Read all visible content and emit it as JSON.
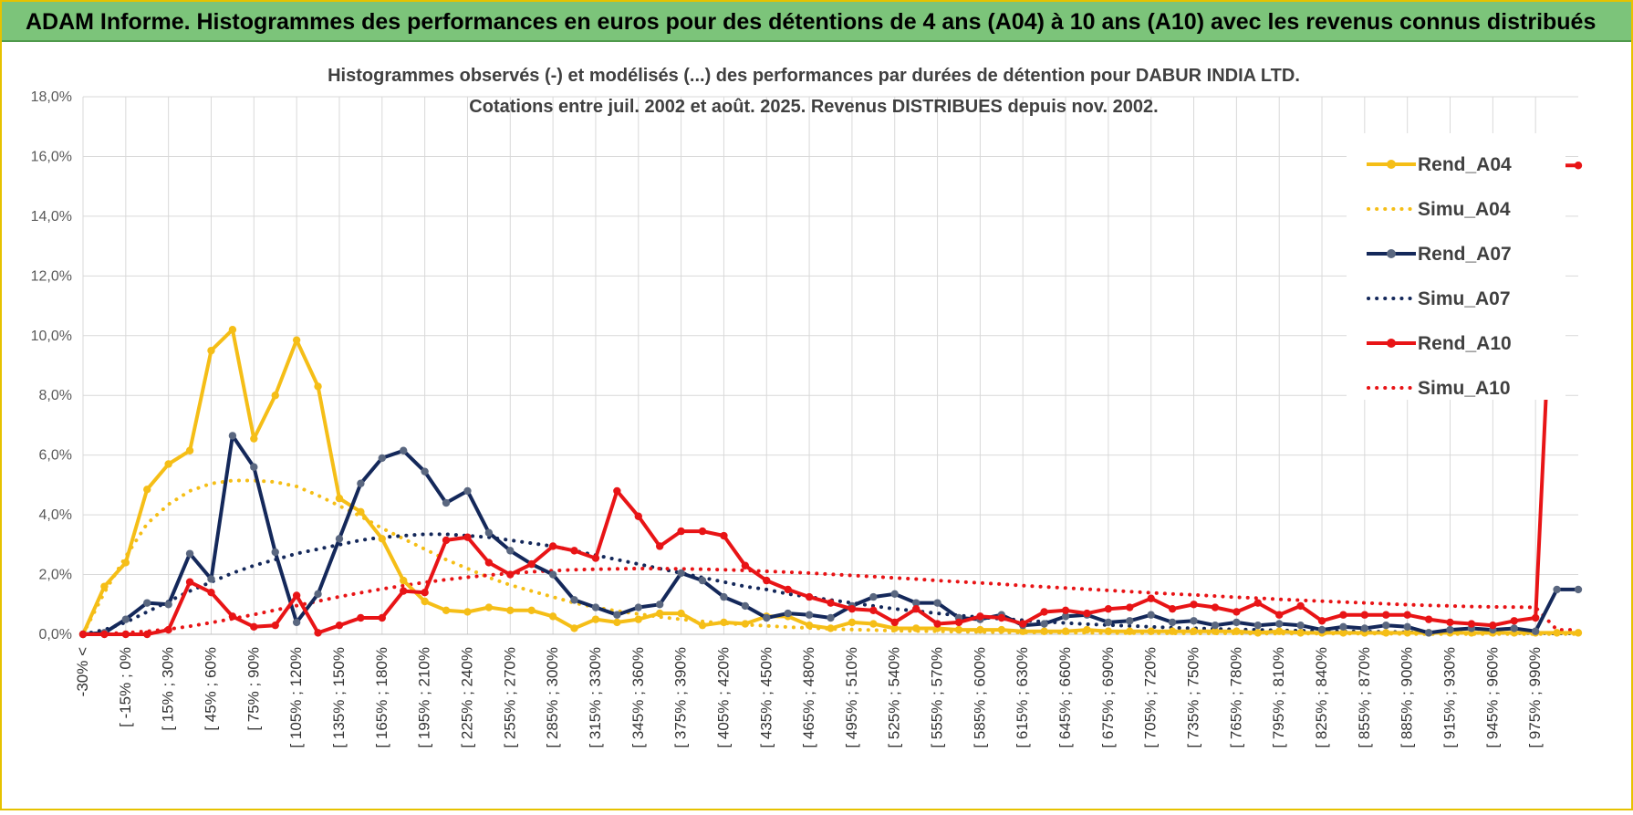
{
  "banner": {
    "title": "ADAM Informe. Histogrammes des performances en euros pour des détentions de 4 ans (A04) à 10 ans (A10) avec les revenus connus distribués"
  },
  "chart_data": {
    "type": "line",
    "title": "Histogrammes observés (-) et modélisés (...) des performances par durées de détention pour DABUR INDIA LTD.",
    "subtitle": "Cotations entre juil. 2002 et août. 2025. Revenus DISTRIBUES depuis nov. 2002.",
    "xlabel": "",
    "ylabel": "",
    "ylim": [
      0,
      18
    ],
    "y_ticks": [
      "0,0%",
      "2,0%",
      "4,0%",
      "6,0%",
      "8,0%",
      "10,0%",
      "12,0%",
      "14,0%",
      "16,0%",
      "18,0%"
    ],
    "x_tick_labels": [
      "-30% <",
      "[ -15% ; 0%",
      "[ 15% ; 30%",
      "[ 45% ; 60%",
      "[ 75% ; 90%",
      "[ 105% ; 120%",
      "[ 135% ; 150%",
      "[ 165% ; 180%",
      "[ 195% ; 210%",
      "[ 225% ; 240%",
      "[ 255% ; 270%",
      "[ 285% ; 300%",
      "[ 315% ; 330%",
      "[ 345% ; 360%",
      "[ 375% ; 390%",
      "[ 405% ; 420%",
      "[ 435% ; 450%",
      "[ 465% ; 480%",
      "[ 495% ; 510%",
      "[ 525% ; 540%",
      "[ 555% ; 570%",
      "[ 585% ; 600%",
      "[ 615% ; 630%",
      "[ 645% ; 660%",
      "[ 675% ; 690%",
      "[ 705% ; 720%",
      "[ 735% ; 750%",
      "[ 765% ; 780%",
      "[ 795% ; 810%",
      "[ 825% ; 840%",
      "[ 855% ; 870%",
      "[ 885% ; 900%",
      "[ 915% ; 930%",
      "[ 945% ; 960%",
      "[ 975% ; 990%"
    ],
    "grid": true,
    "legend_position": "top-right",
    "series": [
      {
        "name": "Rend_A04",
        "style": "solid-marker",
        "color": "#f5be17",
        "values": [
          0,
          1.6,
          2.4,
          4.85,
          5.7,
          6.15,
          9.5,
          10.2,
          6.55,
          8.0,
          9.85,
          8.3,
          4.55,
          4.1,
          3.2,
          1.8,
          1.1,
          0.8,
          0.75,
          0.9,
          0.8,
          0.8,
          0.6,
          0.2,
          0.5,
          0.4,
          0.5,
          0.7,
          0.7,
          0.3,
          0.4,
          0.35,
          0.6,
          0.6,
          0.3,
          0.2,
          0.4,
          0.35,
          0.2,
          0.2,
          0.2,
          0.15,
          0.15,
          0.15,
          0.1,
          0.1,
          0.1,
          0.15,
          0.1,
          0.1,
          0.1,
          0.1,
          0.1,
          0.1,
          0.1,
          0.05,
          0.1,
          0.05,
          0.05,
          0.05,
          0.05,
          0.05,
          0.05,
          0.05,
          0.05,
          0.05,
          0.05,
          0.05,
          0.05,
          0.05,
          0.05
        ]
      },
      {
        "name": "Simu_A04",
        "style": "dotted",
        "color": "#f5be17",
        "values": [
          0,
          1.4,
          2.6,
          3.7,
          4.35,
          4.8,
          5.05,
          5.15,
          5.15,
          5.1,
          4.95,
          4.65,
          4.3,
          3.95,
          3.55,
          3.2,
          2.85,
          2.5,
          2.2,
          1.9,
          1.65,
          1.45,
          1.25,
          1.05,
          0.9,
          0.78,
          0.68,
          0.58,
          0.5,
          0.43,
          0.37,
          0.32,
          0.28,
          0.24,
          0.21,
          0.18,
          0.16,
          0.14,
          0.12,
          0.11,
          0.1,
          0.09,
          0.08,
          0.07,
          0.06,
          0.06,
          0.05,
          0.05,
          0.04,
          0.04,
          0.04,
          0.03,
          0.03,
          0.03,
          0.03,
          0.02,
          0.02,
          0.02,
          0.02,
          0.02,
          0.02,
          0.02,
          0.01,
          0.01,
          0.01,
          0.01,
          0.01,
          0.01,
          0.01,
          0.01,
          0.01
        ]
      },
      {
        "name": "Rend_A07",
        "style": "solid-marker",
        "color": "#14285a",
        "values": [
          0,
          0.05,
          0.5,
          1.05,
          1.0,
          2.7,
          1.85,
          6.65,
          5.6,
          2.75,
          0.4,
          1.35,
          3.2,
          5.05,
          5.9,
          6.15,
          5.45,
          4.4,
          4.8,
          3.4,
          2.8,
          2.35,
          2.0,
          1.15,
          0.9,
          0.65,
          0.9,
          1.0,
          2.05,
          1.8,
          1.25,
          0.95,
          0.55,
          0.7,
          0.65,
          0.55,
          0.95,
          1.25,
          1.35,
          1.05,
          1.05,
          0.55,
          0.5,
          0.65,
          0.3,
          0.35,
          0.6,
          0.65,
          0.4,
          0.45,
          0.65,
          0.4,
          0.45,
          0.3,
          0.4,
          0.3,
          0.35,
          0.3,
          0.15,
          0.25,
          0.2,
          0.3,
          0.25,
          0.05,
          0.15,
          0.2,
          0.15,
          0.2,
          0.1,
          1.5,
          1.5
        ]
      },
      {
        "name": "Simu_A07",
        "style": "dotted",
        "color": "#14285a",
        "values": [
          0,
          0.15,
          0.4,
          0.75,
          1.1,
          1.45,
          1.75,
          2.05,
          2.3,
          2.5,
          2.7,
          2.85,
          3.0,
          3.15,
          3.25,
          3.3,
          3.35,
          3.35,
          3.3,
          3.25,
          3.15,
          3.05,
          2.95,
          2.8,
          2.65,
          2.5,
          2.35,
          2.2,
          2.05,
          1.9,
          1.75,
          1.6,
          1.5,
          1.35,
          1.25,
          1.15,
          1.05,
          0.95,
          0.85,
          0.78,
          0.7,
          0.63,
          0.57,
          0.52,
          0.47,
          0.42,
          0.38,
          0.34,
          0.31,
          0.28,
          0.25,
          0.22,
          0.2,
          0.18,
          0.16,
          0.15,
          0.13,
          0.12,
          0.11,
          0.1,
          0.09,
          0.08,
          0.07,
          0.06,
          0.06,
          0.05,
          0.05,
          0.04,
          0.04,
          0.03,
          0.03
        ]
      },
      {
        "name": "Rend_A10",
        "style": "solid-marker",
        "color": "#e81416",
        "values": [
          0,
          0,
          0,
          0,
          0.15,
          1.75,
          1.4,
          0.6,
          0.25,
          0.3,
          1.3,
          0.05,
          0.3,
          0.55,
          0.55,
          1.45,
          1.4,
          3.15,
          3.25,
          2.4,
          2.0,
          2.35,
          2.95,
          2.8,
          2.55,
          4.8,
          3.95,
          2.95,
          3.45,
          3.45,
          3.3,
          2.3,
          1.8,
          1.5,
          1.25,
          1.05,
          0.85,
          0.8,
          0.4,
          0.85,
          0.35,
          0.4,
          0.6,
          0.55,
          0.35,
          0.75,
          0.8,
          0.7,
          0.85,
          0.9,
          1.2,
          0.85,
          1.0,
          0.9,
          0.75,
          1.05,
          0.65,
          0.95,
          0.45,
          0.65,
          0.65,
          0.65,
          0.65,
          0.5,
          0.4,
          0.35,
          0.3,
          0.45,
          0.55,
          15.7,
          15.7
        ]
      },
      {
        "name": "Simu_A10",
        "style": "dotted",
        "color": "#e81416",
        "values": [
          0,
          0.02,
          0.05,
          0.1,
          0.17,
          0.27,
          0.39,
          0.52,
          0.66,
          0.81,
          0.96,
          1.11,
          1.26,
          1.39,
          1.52,
          1.63,
          1.74,
          1.83,
          1.91,
          1.98,
          2.04,
          2.09,
          2.13,
          2.16,
          2.18,
          2.19,
          2.2,
          2.2,
          2.19,
          2.18,
          2.16,
          2.14,
          2.11,
          2.08,
          2.05,
          2.01,
          1.97,
          1.93,
          1.89,
          1.85,
          1.8,
          1.76,
          1.72,
          1.68,
          1.63,
          1.59,
          1.55,
          1.51,
          1.47,
          1.43,
          1.39,
          1.35,
          1.32,
          1.28,
          1.24,
          1.21,
          1.17,
          1.14,
          1.11,
          1.08,
          1.05,
          1.02,
          0.99,
          0.97,
          0.95,
          0.93,
          0.92,
          0.91,
          0.9,
          0.15,
          0.15
        ]
      }
    ]
  }
}
